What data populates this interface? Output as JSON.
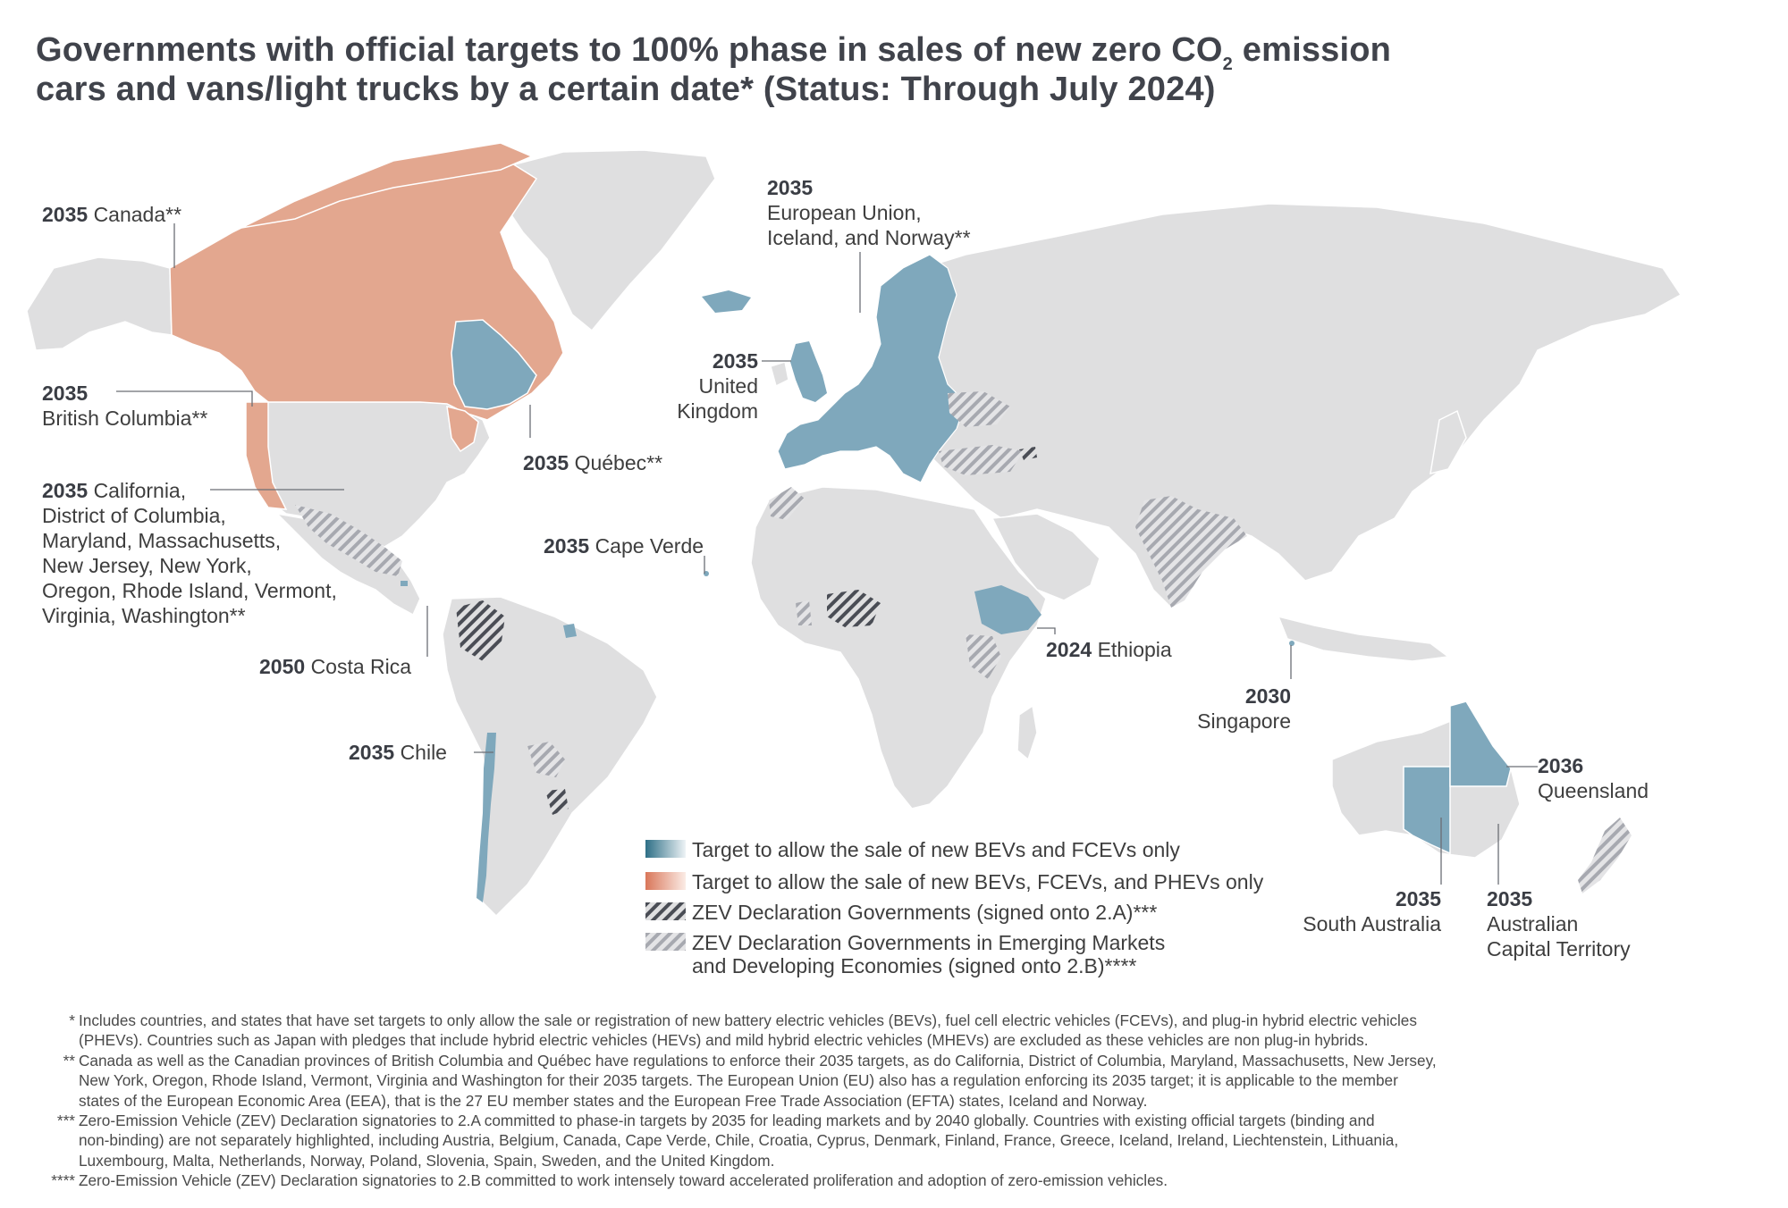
{
  "title": {
    "line1_a": "Governments with official targets to 100% phase in sales of new zero CO",
    "line1_sub": "2",
    "line1_b": " emission",
    "line2": "cars and vans/light trucks by a certain date* (Status: Through July 2024)"
  },
  "colors": {
    "target_bev_fcev": "#7fa8bc",
    "target_bev_fcev_phev": "#e3a78f",
    "land": "#dfdfe0",
    "hatch_2a": "#4a4d55",
    "hatch_2b": "#a7a9b0"
  },
  "labels": {
    "canada": {
      "year": "2035",
      "text": "Canada**"
    },
    "british_columbia": {
      "year": "2035",
      "text": "British Columbia**"
    },
    "california": {
      "year": "2035",
      "lines": [
        "California,",
        "District of Columbia,",
        "Maryland, Massachusetts,",
        "New Jersey, New York,",
        "Oregon, Rhode Island, Vermont,",
        "Virginia, Washington**"
      ]
    },
    "costa_rica": {
      "year": "2050",
      "text": "Costa Rica"
    },
    "chile": {
      "year": "2035",
      "text": "Chile"
    },
    "quebec": {
      "year": "2035",
      "text": "Québec**"
    },
    "cape_verde": {
      "year": "2035",
      "text": "Cape Verde"
    },
    "eu": {
      "year": "2035",
      "lines": [
        "European Union,",
        "Iceland, and Norway**"
      ]
    },
    "uk": {
      "year": "2035",
      "lines": [
        "United",
        "Kingdom"
      ]
    },
    "ethiopia": {
      "year": "2024",
      "text": "Ethiopia"
    },
    "singapore": {
      "year": "2030",
      "text": "Singapore"
    },
    "queensland": {
      "year": "2036",
      "text": "Queensland"
    },
    "south_australia": {
      "year": "2035",
      "text": "South Australia"
    },
    "act": {
      "year": "2035",
      "lines": [
        "Australian",
        "Capital Territory"
      ]
    }
  },
  "legend": {
    "items": [
      {
        "label": "Target to allow the sale of new BEVs and FCEVs only",
        "style": "blue-gradient"
      },
      {
        "label": "Target to allow the sale of new BEVs, FCEVs, and PHEVs only",
        "style": "orange-gradient"
      },
      {
        "label": "ZEV Declaration Governments (signed onto 2.A)***",
        "style": "dark-hatch"
      },
      {
        "label": "ZEV Declaration Governments in Emerging Markets",
        "label2": "and Developing Economies (signed onto 2.B)****",
        "style": "light-hatch"
      }
    ]
  },
  "notes": [
    {
      "mark": "*",
      "lines": [
        "Includes countries, and states that have set targets to only allow the sale or registration of new battery electric vehicles (BEVs), fuel cell electric vehicles (FCEVs), and plug-in hybrid electric vehicles",
        "(PHEVs). Countries such as Japan with pledges that include hybrid electric vehicles (HEVs) and mild hybrid electric vehicles (MHEVs) are excluded as these vehicles are non plug-in hybrids."
      ]
    },
    {
      "mark": "**",
      "lines": [
        "Canada as well as the Canadian provinces of British Columbia and Québec have regulations to enforce their 2035 targets, as do California, District of Columbia, Maryland, Massachusetts, New Jersey,",
        "New York, Oregon, Rhode Island, Vermont, Virginia and Washington for their 2035 targets. The European Union (EU) also has a regulation enforcing its 2035 target; it is applicable to the member",
        "states of the European Economic Area (EEA), that is the 27 EU member states and the European Free Trade Association (EFTA) states, Iceland and Norway."
      ]
    },
    {
      "mark": "***",
      "lines": [
        "Zero-Emission Vehicle (ZEV) Declaration signatories to 2.A committed to phase-in targets by 2035 for leading markets and by 2040 globally. Countries with existing official targets (binding and",
        "non-binding) are not separately highlighted, including Austria, Belgium, Canada, Cape Verde, Chile, Croatia, Cyprus, Denmark, Finland, France, Greece, Iceland, Ireland, Liechtenstein, Lithuania,",
        "Luxembourg, Malta, Netherlands, Norway, Poland, Slovenia, Spain, Sweden, and the United Kingdom."
      ]
    },
    {
      "mark": "****",
      "lines": [
        "Zero-Emission Vehicle (ZEV) Declaration signatories to 2.B committed to work intensely toward accelerated proliferation and adoption of zero-emission vehicles."
      ]
    }
  ]
}
